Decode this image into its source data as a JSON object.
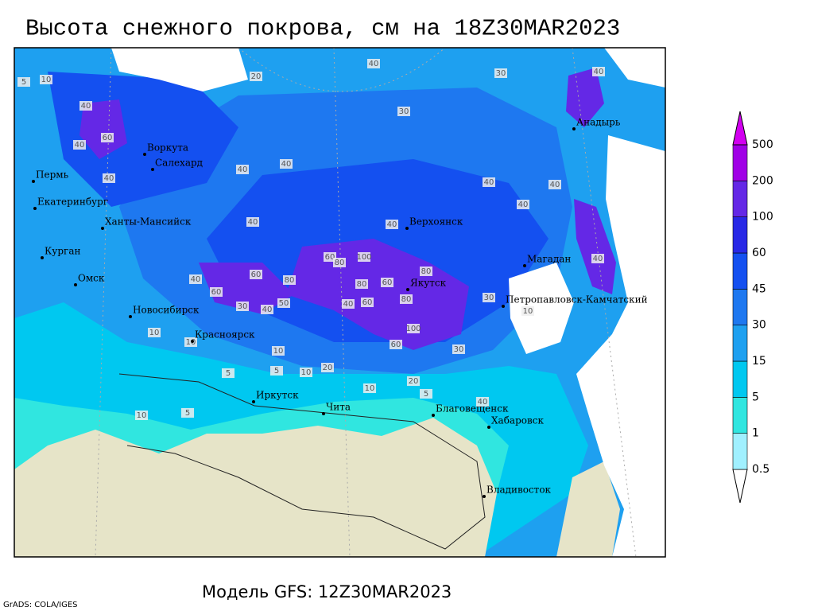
{
  "header": {
    "title": "Высота снежного покрова, см на 18Z30MAR2023"
  },
  "footer": {
    "model": "Модель GFS: 12Z30MAR2023",
    "credit": "GrADS: COLA/IGES"
  },
  "colorbar": {
    "levels": [
      0.5,
      1,
      5,
      15,
      30,
      45,
      60,
      100,
      200,
      500
    ],
    "colors": [
      "#ffffff",
      "#a0f0ff",
      "#30e6e0",
      "#00c8f0",
      "#1ea0f0",
      "#1e78f0",
      "#1450f0",
      "#2828e6",
      "#6428e6",
      "#a000e6",
      "#d200f0"
    ]
  },
  "cities": [
    "Воркута",
    "Салехард",
    "Пермь",
    "Екатеринбург",
    "Ханты-Мансийск",
    "Курган",
    "Омск",
    "Новосибирск",
    "Красноярск",
    "Иркутск",
    "Чита",
    "Верхоянск",
    "Якутск",
    "Магадан",
    "Петропавловск-Камчатский",
    "Анадырь",
    "Благовещенск",
    "Хабаровск",
    "Владивосток"
  ],
  "contour_labels": [
    40,
    30,
    20,
    30,
    40,
    60,
    40,
    40,
    40,
    40,
    40,
    40,
    40,
    40,
    40,
    60,
    80,
    100,
    80,
    60,
    80,
    80,
    60,
    40,
    100,
    60,
    30,
    10,
    5,
    5,
    20,
    10,
    20,
    10,
    5,
    40,
    30,
    10,
    40,
    40,
    5,
    10,
    40,
    60,
    60,
    80,
    50,
    40,
    30,
    10,
    10,
    5,
    10
  ]
}
